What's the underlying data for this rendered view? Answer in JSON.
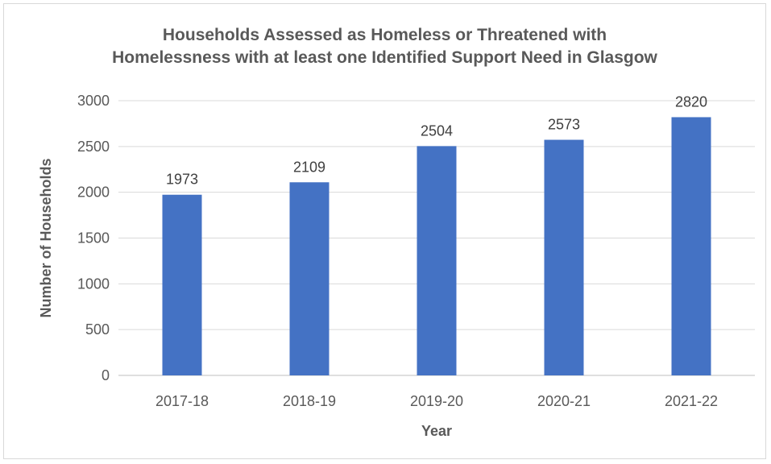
{
  "chart_data": {
    "type": "bar",
    "title_lines": [
      "Households Assessed as Homeless or Threatened with",
      "Homelessness with at least one Identified Support Need in Glasgow"
    ],
    "categories": [
      "2017-18",
      "2018-19",
      "2019-20",
      "2020-21",
      "2021-22"
    ],
    "values": [
      1973,
      2109,
      2504,
      2573,
      2820
    ],
    "xlabel": "Year",
    "ylabel": "Number of Households",
    "ylim": [
      0,
      3000
    ],
    "yticks": [
      0,
      500,
      1000,
      1500,
      2000,
      2500,
      3000
    ],
    "grid": true,
    "data_labels": true,
    "bar_color": "#4472C4"
  }
}
